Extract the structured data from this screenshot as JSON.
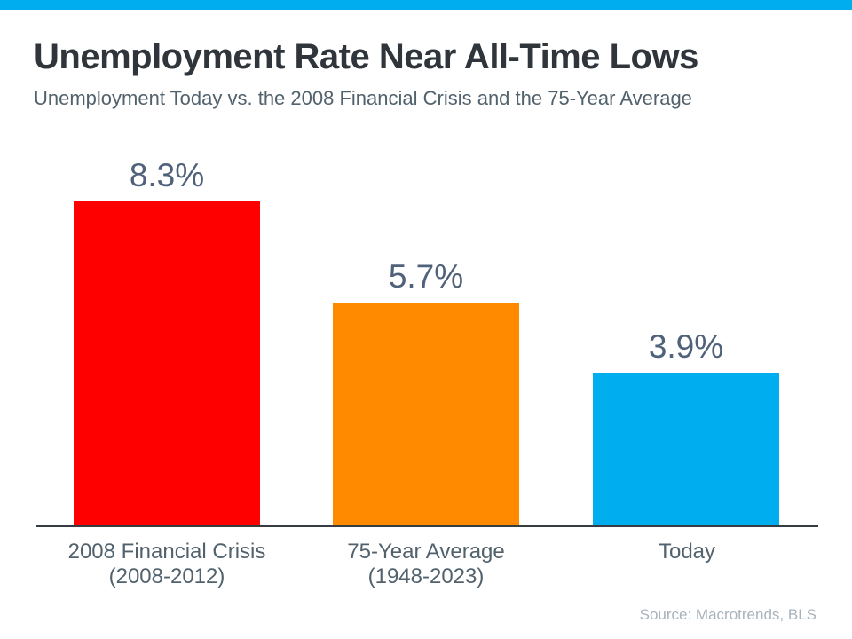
{
  "page": {
    "accent_color": "#00AEEF",
    "background": "#ffffff"
  },
  "header": {
    "title": "Unemployment Rate Near All-Time Lows",
    "subtitle": "Unemployment Today vs. the 2008 Financial Crisis and the 75-Year Average"
  },
  "chart_data": {
    "type": "bar",
    "title": "Unemployment Rate Near All-Time Lows",
    "subtitle": "Unemployment Today vs. the 2008 Financial Crisis and the 75-Year Average",
    "categories": [
      "2008 Financial Crisis\n(2008-2012)",
      "75-Year Average\n(1948-2023)",
      "Today"
    ],
    "values": [
      8.3,
      5.7,
      3.9
    ],
    "value_labels": [
      "8.3%",
      "5.7%",
      "3.9%"
    ],
    "bar_colors": [
      "#FF0000",
      "#FF8A00",
      "#00AEEF"
    ],
    "unit": "%",
    "xlabel": "",
    "ylabel": "",
    "ylim": [
      0,
      9
    ],
    "grid": false,
    "legend": false,
    "axis_line_color": "#363C42",
    "text_color": "#52626D",
    "value_label_color": "#50617A"
  },
  "footer": {
    "source": "Source: Macrotrends, BLS"
  }
}
